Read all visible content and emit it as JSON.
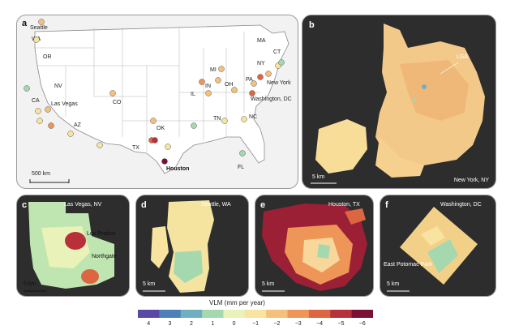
{
  "panels": {
    "a": {
      "label": "a",
      "state_labels": [
        "WA",
        "OR",
        "NV",
        "CA",
        "AZ",
        "CO",
        "TX",
        "OK",
        "IL",
        "IN",
        "OH",
        "MI",
        "TN",
        "NC",
        "PA",
        "NY",
        "MA",
        "CT",
        "FL"
      ],
      "city_labels": [
        "Seattle",
        "Las Vegas",
        "Houston",
        "New York",
        "Washington, DC"
      ],
      "scale_label": "500 km"
    },
    "b": {
      "label": "b",
      "title": "New York, NY",
      "annotation": "LGA",
      "scale_label": "5 km"
    },
    "c": {
      "label": "c",
      "title": "Las Vegas, NV",
      "annotations": [
        "Los Prados",
        "Northgate"
      ],
      "scale_label": "5 km"
    },
    "d": {
      "label": "d",
      "title": "Seattle, WA",
      "scale_label": "5 km"
    },
    "e": {
      "label": "e",
      "title": "Houston, TX",
      "scale_label": "5 km"
    },
    "f": {
      "label": "f",
      "title": "Washington, DC",
      "annotation": "East Potomac Park",
      "scale_label": "5 km"
    }
  },
  "legend": {
    "title": "VLM (mm per year)",
    "ticks": [
      "4",
      "3",
      "2",
      "1",
      "0",
      "−1",
      "−2",
      "−3",
      "−4",
      "−5",
      "−6"
    ],
    "colors": [
      "#5a4aa6",
      "#4f7fb8",
      "#6fb0c0",
      "#a6d8b0",
      "#e9f2b8",
      "#f8e3a0",
      "#f5c07a",
      "#ee9558",
      "#dd6642",
      "#b8313a",
      "#7a1034"
    ]
  }
}
